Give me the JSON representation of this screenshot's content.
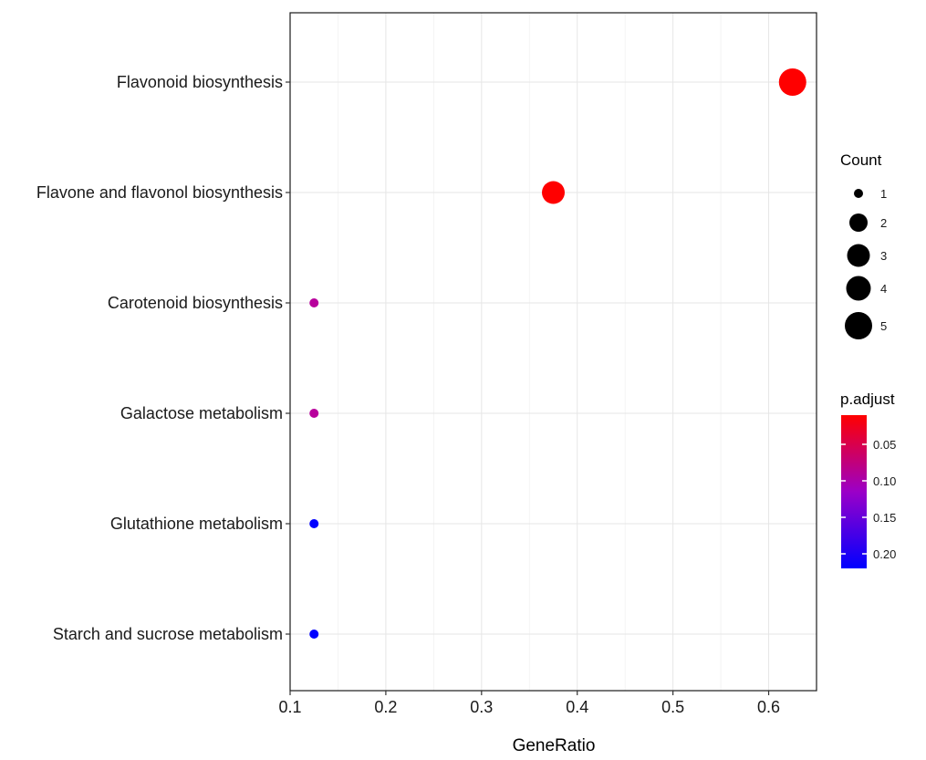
{
  "chart_data": {
    "type": "scatter",
    "title": "",
    "xlabel": "GeneRatio",
    "ylabel": "",
    "xlim": [
      0.1,
      0.65
    ],
    "x_ticks": [
      0.1,
      0.2,
      0.3,
      0.4,
      0.5,
      0.6
    ],
    "x_tick_labels": [
      "0.1",
      "0.2",
      "0.3",
      "0.4",
      "0.5",
      "0.6"
    ],
    "categories": [
      "Flavonoid biosynthesis",
      "Flavone and flavonol biosynthesis",
      "Carotenoid biosynthesis",
      "Galactose metabolism",
      "Glutathione metabolism",
      "Starch and sucrose metabolism"
    ],
    "points": [
      {
        "category": "Flavonoid biosynthesis",
        "x": 0.625,
        "count": 5,
        "p_adjust": 0.01,
        "color": "#ff0000"
      },
      {
        "category": "Flavone and flavonol biosynthesis",
        "x": 0.375,
        "count": 3,
        "p_adjust": 0.01,
        "color": "#ff0000"
      },
      {
        "category": "Carotenoid biosynthesis",
        "x": 0.125,
        "count": 1,
        "p_adjust": 0.12,
        "color": "#b8009c"
      },
      {
        "category": "Galactose metabolism",
        "x": 0.125,
        "count": 1,
        "p_adjust": 0.12,
        "color": "#b8009c"
      },
      {
        "category": "Glutathione metabolism",
        "x": 0.125,
        "count": 1,
        "p_adjust": 0.22,
        "color": "#0000ff"
      },
      {
        "category": "Starch and sucrose metabolism",
        "x": 0.125,
        "count": 1,
        "p_adjust": 0.22,
        "color": "#0000ff"
      }
    ],
    "grid": true,
    "legend_position": "right",
    "size_legend": {
      "title": "Count",
      "items": [
        {
          "label": "1",
          "value": 1
        },
        {
          "label": "2",
          "value": 2
        },
        {
          "label": "3",
          "value": 3
        },
        {
          "label": "4",
          "value": 4
        },
        {
          "label": "5",
          "value": 5
        }
      ]
    },
    "color_legend": {
      "title": "p.adjust",
      "low_color": "#ff0000",
      "high_color": "#0000ff",
      "range": [
        0.01,
        0.22
      ],
      "ticks": [
        {
          "label": "0.05",
          "value": 0.05
        },
        {
          "label": "0.10",
          "value": 0.1
        },
        {
          "label": "0.15",
          "value": 0.15
        },
        {
          "label": "0.20",
          "value": 0.2
        }
      ]
    }
  }
}
